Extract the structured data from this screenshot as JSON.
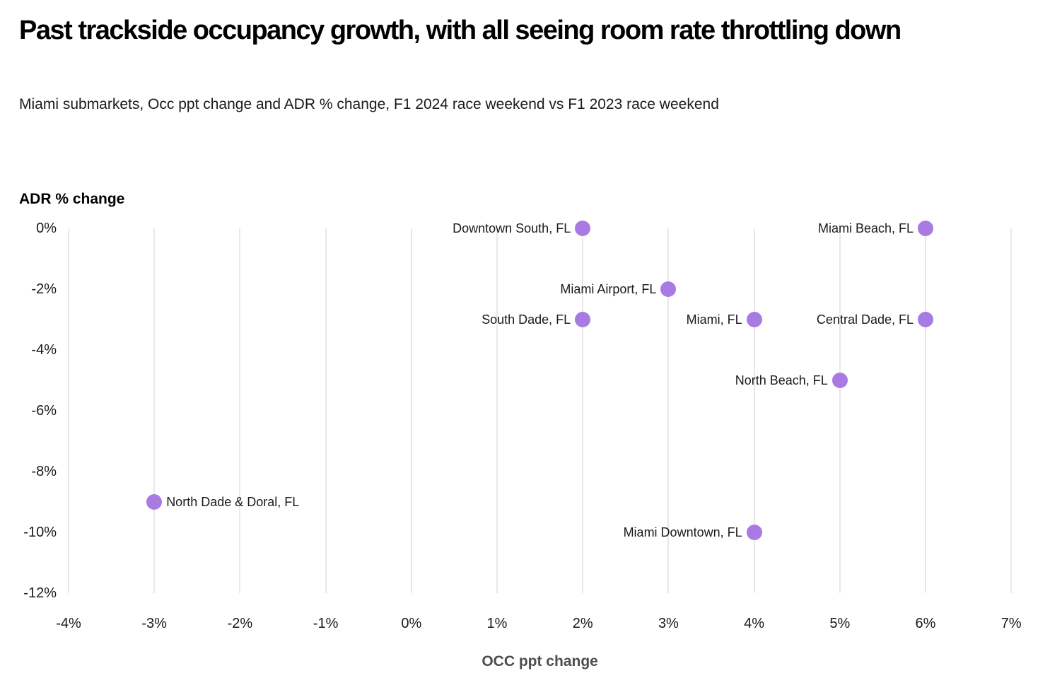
{
  "header": {
    "title": "Past trackside occupancy growth, with all seeing room rate throttling down",
    "subtitle": "Miami submarkets, Occ ppt change and ADR % change, F1 2024 race weekend vs F1 2023 race weekend"
  },
  "chart_data": {
    "type": "scatter",
    "title": "Past trackside occupancy growth, with all seeing room rate throttling down",
    "subtitle": "Miami submarkets, Occ ppt change and ADR % change, F1 2024 race weekend vs F1 2023 race weekend",
    "xlabel": "OCC ppt change",
    "ylabel": "ADR % change",
    "xlim": [
      -4,
      7
    ],
    "ylim": [
      -12,
      0
    ],
    "x_ticks": [
      -4,
      -3,
      -2,
      -1,
      0,
      1,
      2,
      3,
      4,
      5,
      6,
      7
    ],
    "y_ticks": [
      0,
      -2,
      -4,
      -6,
      -8,
      -10,
      -12
    ],
    "tick_suffix": "%",
    "grid": "vertical-only",
    "legend": "none",
    "colors": {
      "dot": "#a97ae1",
      "gridline": "#e8e8e8",
      "x_axis_title": "#4d4d4d",
      "text": "#1a1a1a"
    },
    "points": [
      {
        "label": "Downtown South, FL",
        "x": 2,
        "y": 0,
        "label_side": "left"
      },
      {
        "label": "Miami Beach, FL",
        "x": 6,
        "y": 0,
        "label_side": "left"
      },
      {
        "label": "Miami Airport, FL",
        "x": 3,
        "y": -2,
        "label_side": "left"
      },
      {
        "label": "South Dade, FL",
        "x": 2,
        "y": -3,
        "label_side": "left"
      },
      {
        "label": "Miami, FL",
        "x": 4,
        "y": -3,
        "label_side": "left"
      },
      {
        "label": "Central Dade, FL",
        "x": 6,
        "y": -3,
        "label_side": "left"
      },
      {
        "label": "North Beach, FL",
        "x": 5,
        "y": -5,
        "label_side": "left"
      },
      {
        "label": "North Dade & Doral, FL",
        "x": -3,
        "y": -9,
        "label_side": "right"
      },
      {
        "label": "Miami Downtown, FL",
        "x": 4,
        "y": -10,
        "label_side": "left"
      }
    ]
  }
}
